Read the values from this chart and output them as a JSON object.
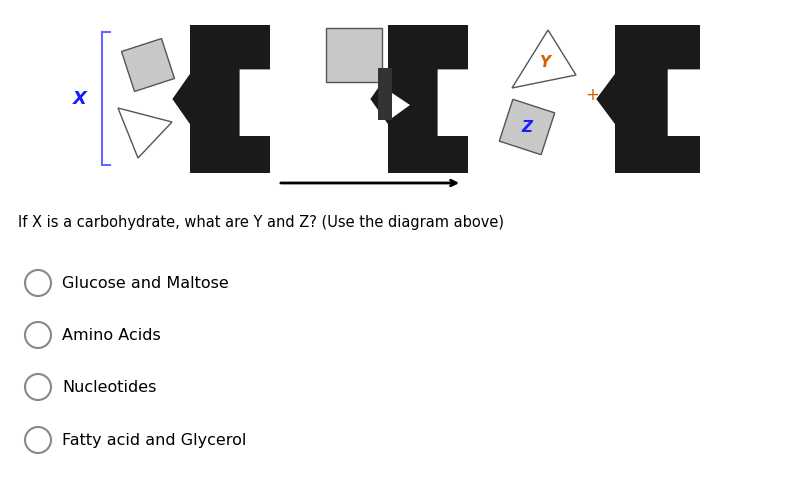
{
  "bg_color": "#ffffff",
  "question_text": "If X is a carbohydrate, what are Y and Z? (Use the diagram above)",
  "options": [
    "Glucose and Maltose",
    "Amino Acids",
    "Nucleotides",
    "Fatty acid and Glycerol"
  ],
  "x_label": "X",
  "y_label": "Y",
  "z_label": "Z",
  "plus_label": "+",
  "dark_color": "#1a1a1a",
  "light_gray": "#c8c8c8",
  "x_text_color": "#1a1aff",
  "y_text_color": "#cc6600",
  "z_text_color": "#1a1aff",
  "plus_color": "#cc6600",
  "question_fontsize": 10.5,
  "option_fontsize": 11.5
}
